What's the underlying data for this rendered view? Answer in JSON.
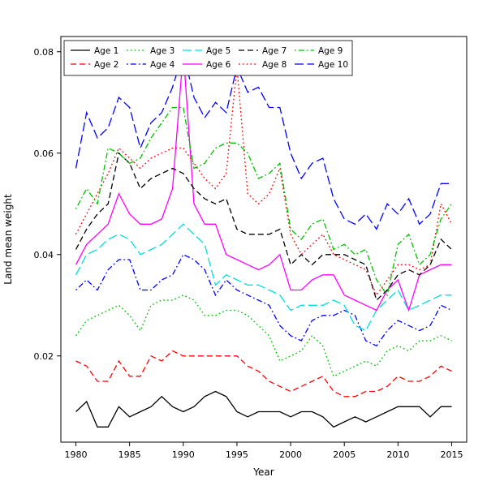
{
  "chart_data": {
    "type": "line",
    "title": "",
    "xlabel": "Year",
    "ylabel": "Land mean weight",
    "grid": false,
    "legend_position": "top-left",
    "xlim": [
      1978.6,
      2016.4
    ],
    "ylim": [
      0.003,
      0.083
    ],
    "xticks": [
      1980,
      1985,
      1990,
      1995,
      2000,
      2005,
      2010,
      2015
    ],
    "xtick_labels": [
      "1980",
      "1985",
      "1990",
      "1995",
      "2000",
      "2005",
      "2010",
      "2015"
    ],
    "yticks": [
      0.02,
      0.04,
      0.06,
      0.08
    ],
    "ytick_labels": [
      "0.02",
      "0.04",
      "0.06",
      "0.08"
    ],
    "x": [
      1980,
      1981,
      1982,
      1983,
      1984,
      1985,
      1986,
      1987,
      1988,
      1989,
      1990,
      1991,
      1992,
      1993,
      1994,
      1995,
      1996,
      1997,
      1998,
      1999,
      2000,
      2001,
      2002,
      2003,
      2004,
      2005,
      2006,
      2007,
      2008,
      2009,
      2010,
      2011,
      2012,
      2013,
      2014,
      2015
    ],
    "series": [
      {
        "name": "Age 1",
        "color": "#000000",
        "dash": "solid",
        "values": [
          0.009,
          0.011,
          0.006,
          0.006,
          0.01,
          0.008,
          0.009,
          0.01,
          0.012,
          0.01,
          0.009,
          0.01,
          0.012,
          0.013,
          0.012,
          0.009,
          0.008,
          0.009,
          0.009,
          0.009,
          0.008,
          0.009,
          0.009,
          0.008,
          0.006,
          0.007,
          0.008,
          0.007,
          0.008,
          0.009,
          0.01,
          0.01,
          0.01,
          0.008,
          0.01,
          0.01
        ]
      },
      {
        "name": "Age 2",
        "color": "#ff0000",
        "dash": "dashed",
        "values": [
          0.019,
          0.018,
          0.015,
          0.015,
          0.019,
          0.016,
          0.016,
          0.02,
          0.019,
          0.021,
          0.02,
          0.02,
          0.02,
          0.02,
          0.02,
          0.02,
          0.018,
          0.017,
          0.015,
          0.014,
          0.013,
          0.014,
          0.015,
          0.016,
          0.013,
          0.012,
          0.012,
          0.013,
          0.013,
          0.014,
          0.016,
          0.015,
          0.015,
          0.016,
          0.018,
          0.017
        ]
      },
      {
        "name": "Age 3",
        "color": "#00c000",
        "dash": "dotted",
        "values": [
          0.024,
          0.027,
          0.028,
          0.029,
          0.03,
          0.028,
          0.025,
          0.03,
          0.031,
          0.031,
          0.032,
          0.031,
          0.028,
          0.028,
          0.029,
          0.029,
          0.028,
          0.026,
          0.024,
          0.019,
          0.02,
          0.021,
          0.024,
          0.022,
          0.016,
          0.017,
          0.018,
          0.019,
          0.018,
          0.021,
          0.022,
          0.021,
          0.023,
          0.023,
          0.024,
          0.023
        ]
      },
      {
        "name": "Age 4",
        "color": "#0000ff",
        "dash": "dotdash",
        "values": [
          0.033,
          0.035,
          0.033,
          0.037,
          0.039,
          0.039,
          0.033,
          0.033,
          0.035,
          0.036,
          0.04,
          0.039,
          0.037,
          0.032,
          0.035,
          0.033,
          0.032,
          0.031,
          0.03,
          0.026,
          0.024,
          0.023,
          0.027,
          0.028,
          0.028,
          0.029,
          0.028,
          0.023,
          0.022,
          0.025,
          0.027,
          0.026,
          0.025,
          0.026,
          0.03,
          0.029
        ]
      },
      {
        "name": "Age 5",
        "color": "#00dede",
        "dash": "longdash",
        "values": [
          0.036,
          0.04,
          0.041,
          0.043,
          0.044,
          0.043,
          0.04,
          0.041,
          0.042,
          0.044,
          0.046,
          0.044,
          0.042,
          0.034,
          0.036,
          0.035,
          0.034,
          0.034,
          0.033,
          0.032,
          0.029,
          0.03,
          0.03,
          0.03,
          0.031,
          0.03,
          0.026,
          0.025,
          0.029,
          0.031,
          0.033,
          0.029,
          0.03,
          0.031,
          0.032,
          0.032
        ]
      },
      {
        "name": "Age 6",
        "color": "#ff00ff",
        "dash": "solid",
        "values": [
          0.038,
          0.042,
          0.044,
          0.046,
          0.052,
          0.048,
          0.046,
          0.046,
          0.047,
          0.053,
          0.08,
          0.05,
          0.046,
          0.046,
          0.04,
          0.039,
          0.038,
          0.037,
          0.038,
          0.04,
          0.033,
          0.033,
          0.035,
          0.036,
          0.036,
          0.032,
          0.031,
          0.03,
          0.029,
          0.033,
          0.035,
          0.029,
          0.036,
          0.037,
          0.038,
          0.038
        ]
      },
      {
        "name": "Age 7",
        "color": "#000000",
        "dash": "dashed",
        "values": [
          0.041,
          0.045,
          0.048,
          0.05,
          0.06,
          0.058,
          0.053,
          0.055,
          0.056,
          0.057,
          0.056,
          0.053,
          0.051,
          0.05,
          0.051,
          0.045,
          0.044,
          0.044,
          0.044,
          0.045,
          0.038,
          0.04,
          0.038,
          0.04,
          0.04,
          0.04,
          0.039,
          0.038,
          0.031,
          0.033,
          0.036,
          0.037,
          0.036,
          0.038,
          0.043,
          0.041
        ]
      },
      {
        "name": "Age 8",
        "color": "#ff0000",
        "dash": "dotted",
        "values": [
          0.044,
          0.048,
          0.052,
          0.056,
          0.061,
          0.059,
          0.057,
          0.059,
          0.06,
          0.061,
          0.061,
          0.058,
          0.055,
          0.053,
          0.056,
          0.077,
          0.052,
          0.05,
          0.052,
          0.057,
          0.044,
          0.04,
          0.042,
          0.044,
          0.04,
          0.039,
          0.038,
          0.037,
          0.032,
          0.035,
          0.038,
          0.038,
          0.037,
          0.038,
          0.05,
          0.046
        ]
      },
      {
        "name": "Age 9",
        "color": "#00c000",
        "dash": "dotdash",
        "values": [
          0.049,
          0.053,
          0.05,
          0.061,
          0.06,
          0.058,
          0.059,
          0.063,
          0.066,
          0.069,
          0.069,
          0.057,
          0.058,
          0.061,
          0.062,
          0.062,
          0.06,
          0.055,
          0.056,
          0.058,
          0.045,
          0.043,
          0.046,
          0.047,
          0.041,
          0.042,
          0.04,
          0.041,
          0.035,
          0.032,
          0.042,
          0.044,
          0.038,
          0.04,
          0.047,
          0.05
        ]
      },
      {
        "name": "Age 10",
        "color": "#0000ff",
        "dash": "longdash",
        "values": [
          0.057,
          0.068,
          0.063,
          0.065,
          0.071,
          0.069,
          0.061,
          0.066,
          0.068,
          0.073,
          0.08,
          0.071,
          0.067,
          0.07,
          0.068,
          0.077,
          0.072,
          0.073,
          0.069,
          0.069,
          0.06,
          0.055,
          0.058,
          0.059,
          0.051,
          0.047,
          0.046,
          0.048,
          0.045,
          0.05,
          0.048,
          0.051,
          0.046,
          0.048,
          0.054,
          0.054
        ]
      }
    ]
  }
}
